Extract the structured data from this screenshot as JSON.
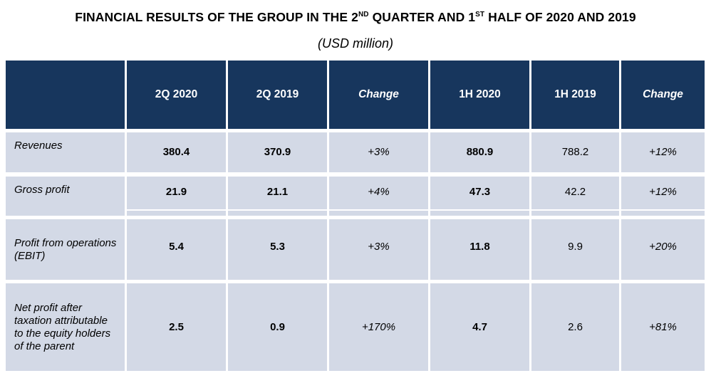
{
  "title": {
    "part1": "FINANCIAL RESULTS OF THE GROUP IN THE 2",
    "sup1": "ND",
    "part2": " QUARTER AND 1",
    "sup2": "ST",
    "part3": " HALF OF 2020 AND 2019"
  },
  "subtitle": "(USD million)",
  "table": {
    "headers": [
      "",
      "2Q 2020",
      "2Q 2019",
      "Change",
      "1H 2020",
      "1H 2019",
      "Change"
    ],
    "rows": [
      {
        "label": "Revenues",
        "values": [
          "380.4",
          "370.9",
          "+3%",
          "880.9",
          "788.2",
          "+12%"
        ]
      },
      {
        "label": "Gross profit",
        "values": [
          "21.9",
          "21.1",
          "+4%",
          "47.3",
          "42.2",
          "+12%"
        ]
      },
      {
        "label": "Profit from operations (EBIT)",
        "values": [
          "5.4",
          "5.3",
          "+3%",
          "11.8",
          "9.9",
          "+20%"
        ]
      },
      {
        "label": "Net profit after taxation attributable to the equity holders of the parent",
        "values": [
          "2.5",
          "0.9",
          "+170%",
          "4.7",
          "2.6",
          "+81%"
        ]
      }
    ]
  },
  "colors": {
    "header_bg": "#17365d",
    "row_bg": "#d3d9e6"
  }
}
